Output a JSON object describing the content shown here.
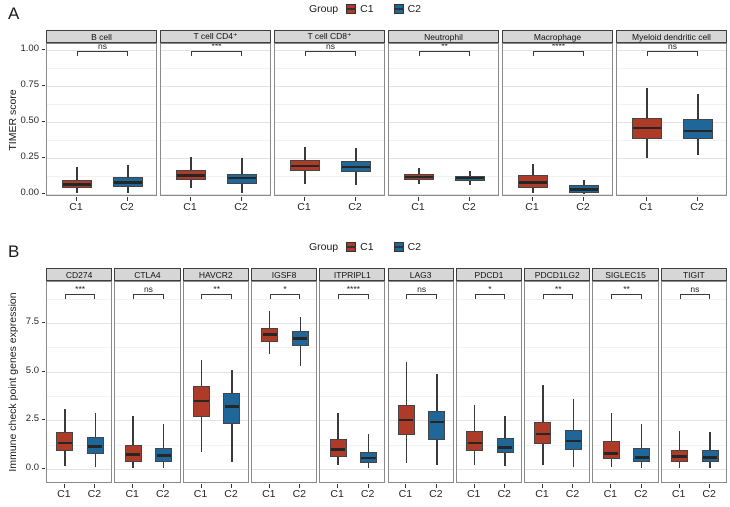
{
  "figure_title": "",
  "colors": {
    "c1": "#AE3B28",
    "c2": "#1F6699",
    "box_border": "#454545",
    "median_line": "#262626",
    "strip_background": "#d6d6d6",
    "panel_border": "#8a8a8a",
    "grid_major": "#e3e3e3",
    "grid_minor": "#f2f2f2"
  },
  "chart_data": [
    {
      "id": "A",
      "type": "boxplot",
      "panel_label": "A",
      "legend": {
        "title": "Group",
        "position": "top-center",
        "items": [
          {
            "label": "C1",
            "color": "#AE3B28"
          },
          {
            "label": "C2",
            "color": "#1F6699"
          }
        ]
      },
      "ylabel": "TIMER score",
      "yticks": [
        0.0,
        0.25,
        0.5,
        0.75,
        1.0
      ],
      "ytick_labels": [
        "0.00",
        "0.25",
        "0.50",
        "0.75",
        "1.00"
      ],
      "ylim": [
        -0.021,
        1.045
      ],
      "grid": true,
      "x_group_labels": [
        "C1",
        "C2"
      ],
      "facets": [
        {
          "title": "B cell",
          "significance": "ns",
          "series": [
            {
              "group": "C1",
              "whisker_low": 0.01,
              "q1": 0.04,
              "median": 0.065,
              "q3": 0.1,
              "whisker_high": 0.19
            },
            {
              "group": "C2",
              "whisker_low": 0.01,
              "q1": 0.05,
              "median": 0.08,
              "q3": 0.115,
              "whisker_high": 0.2
            }
          ]
        },
        {
          "title": "T cell CD4⁺",
          "significance": "***",
          "series": [
            {
              "group": "C1",
              "whisker_low": 0.04,
              "q1": 0.1,
              "median": 0.13,
              "q3": 0.165,
              "whisker_high": 0.26
            },
            {
              "group": "C2",
              "whisker_low": 0.005,
              "q1": 0.07,
              "median": 0.11,
              "q3": 0.14,
              "whisker_high": 0.25
            }
          ]
        },
        {
          "title": "T cell CD8⁺",
          "significance": "ns",
          "series": [
            {
              "group": "C1",
              "whisker_low": 0.07,
              "q1": 0.16,
              "median": 0.195,
              "q3": 0.235,
              "whisker_high": 0.33
            },
            {
              "group": "C2",
              "whisker_low": 0.06,
              "q1": 0.15,
              "median": 0.19,
              "q3": 0.23,
              "whisker_high": 0.32
            }
          ]
        },
        {
          "title": "Neutrophil",
          "significance": "**",
          "series": [
            {
              "group": "C1",
              "whisker_low": 0.07,
              "q1": 0.1,
              "median": 0.12,
              "q3": 0.14,
              "whisker_high": 0.18
            },
            {
              "group": "C2",
              "whisker_low": 0.065,
              "q1": 0.09,
              "median": 0.11,
              "q3": 0.125,
              "whisker_high": 0.16
            }
          ]
        },
        {
          "title": "Macrophage",
          "significance": "****",
          "series": [
            {
              "group": "C1",
              "whisker_low": 0.01,
              "q1": 0.04,
              "median": 0.08,
              "q3": 0.13,
              "whisker_high": 0.21
            },
            {
              "group": "C2",
              "whisker_low": 0.0,
              "q1": 0.01,
              "median": 0.03,
              "q3": 0.06,
              "whisker_high": 0.1
            }
          ]
        },
        {
          "title": "Myeloid dendritic cell",
          "significance": "ns",
          "series": [
            {
              "group": "C1",
              "whisker_low": 0.25,
              "q1": 0.38,
              "median": 0.46,
              "q3": 0.53,
              "whisker_high": 0.74
            },
            {
              "group": "C2",
              "whisker_low": 0.27,
              "q1": 0.38,
              "median": 0.44,
              "q3": 0.52,
              "whisker_high": 0.7
            }
          ]
        }
      ]
    },
    {
      "id": "B",
      "type": "boxplot",
      "panel_label": "B",
      "legend": {
        "title": "Group",
        "position": "top-center",
        "items": [
          {
            "label": "C1",
            "color": "#AE3B28"
          },
          {
            "label": "C2",
            "color": "#1F6699"
          }
        ]
      },
      "ylabel": "Immune check point genes expression",
      "yticks": [
        0.0,
        2.5,
        5.0,
        7.5
      ],
      "ytick_labels": [
        "0.0",
        "2.5",
        "5.0",
        "7.5"
      ],
      "ylim": [
        -0.77,
        9.6
      ],
      "grid": true,
      "x_group_labels": [
        "C1",
        "C2"
      ],
      "facets": [
        {
          "title": "CD274",
          "significance": "***",
          "series": [
            {
              "group": "C1",
              "whisker_low": 0.15,
              "q1": 0.9,
              "median": 1.35,
              "q3": 1.9,
              "whisker_high": 3.1
            },
            {
              "group": "C2",
              "whisker_low": 0.1,
              "q1": 0.75,
              "median": 1.15,
              "q3": 1.65,
              "whisker_high": 2.9
            }
          ]
        },
        {
          "title": "CTLA4",
          "significance": "ns",
          "series": [
            {
              "group": "C1",
              "whisker_low": 0.05,
              "q1": 0.35,
              "median": 0.75,
              "q3": 1.25,
              "whisker_high": 2.7
            },
            {
              "group": "C2",
              "whisker_low": 0.05,
              "q1": 0.35,
              "median": 0.7,
              "q3": 1.1,
              "whisker_high": 2.3
            }
          ]
        },
        {
          "title": "HAVCR2",
          "significance": "**",
          "series": [
            {
              "group": "C1",
              "whisker_low": 0.85,
              "q1": 2.65,
              "median": 3.5,
              "q3": 4.25,
              "whisker_high": 5.6
            },
            {
              "group": "C2",
              "whisker_low": 0.35,
              "q1": 2.3,
              "median": 3.2,
              "q3": 3.9,
              "whisker_high": 5.1
            }
          ]
        },
        {
          "title": "IGSF8",
          "significance": "*",
          "series": [
            {
              "group": "C1",
              "whisker_low": 5.9,
              "q1": 6.5,
              "median": 6.9,
              "q3": 7.25,
              "whisker_high": 8.1
            },
            {
              "group": "C2",
              "whisker_low": 5.3,
              "q1": 6.3,
              "median": 6.7,
              "q3": 7.1,
              "whisker_high": 7.8
            }
          ]
        },
        {
          "title": "ITPRIPL1",
          "significance": "****",
          "series": [
            {
              "group": "C1",
              "whisker_low": 0.2,
              "q1": 0.6,
              "median": 1.0,
              "q3": 1.55,
              "whisker_high": 2.9
            },
            {
              "group": "C2",
              "whisker_low": 0.05,
              "q1": 0.3,
              "median": 0.55,
              "q3": 0.85,
              "whisker_high": 1.8
            }
          ]
        },
        {
          "title": "LAG3",
          "significance": "ns",
          "series": [
            {
              "group": "C1",
              "whisker_low": 0.3,
              "q1": 1.75,
              "median": 2.5,
              "q3": 3.3,
              "whisker_high": 5.5
            },
            {
              "group": "C2",
              "whisker_low": 0.2,
              "q1": 1.5,
              "median": 2.4,
              "q3": 3.0,
              "whisker_high": 4.9
            }
          ]
        },
        {
          "title": "PDCD1",
          "significance": "*",
          "series": [
            {
              "group": "C1",
              "whisker_low": 0.2,
              "q1": 0.9,
              "median": 1.35,
              "q3": 1.95,
              "whisker_high": 3.3
            },
            {
              "group": "C2",
              "whisker_low": 0.15,
              "q1": 0.8,
              "median": 1.1,
              "q3": 1.6,
              "whisker_high": 2.7
            }
          ]
        },
        {
          "title": "PDCD1LG2",
          "significance": "**",
          "series": [
            {
              "group": "C1",
              "whisker_low": 0.2,
              "q1": 1.3,
              "median": 1.8,
              "q3": 2.4,
              "whisker_high": 4.3
            },
            {
              "group": "C2",
              "whisker_low": 0.1,
              "q1": 1.0,
              "median": 1.45,
              "q3": 2.0,
              "whisker_high": 3.6
            }
          ]
        },
        {
          "title": "SIGLEC15",
          "significance": "**",
          "series": [
            {
              "group": "C1",
              "whisker_low": 0.1,
              "q1": 0.5,
              "median": 0.8,
              "q3": 1.45,
              "whisker_high": 2.9
            },
            {
              "group": "C2",
              "whisker_low": 0.05,
              "q1": 0.35,
              "median": 0.6,
              "q3": 1.1,
              "whisker_high": 2.3
            }
          ]
        },
        {
          "title": "TIGIT",
          "significance": "ns",
          "series": [
            {
              "group": "C1",
              "whisker_low": 0.05,
              "q1": 0.35,
              "median": 0.65,
              "q3": 1.0,
              "whisker_high": 1.95
            },
            {
              "group": "C2",
              "whisker_low": 0.05,
              "q1": 0.35,
              "median": 0.6,
              "q3": 1.0,
              "whisker_high": 1.9
            }
          ]
        }
      ]
    }
  ]
}
